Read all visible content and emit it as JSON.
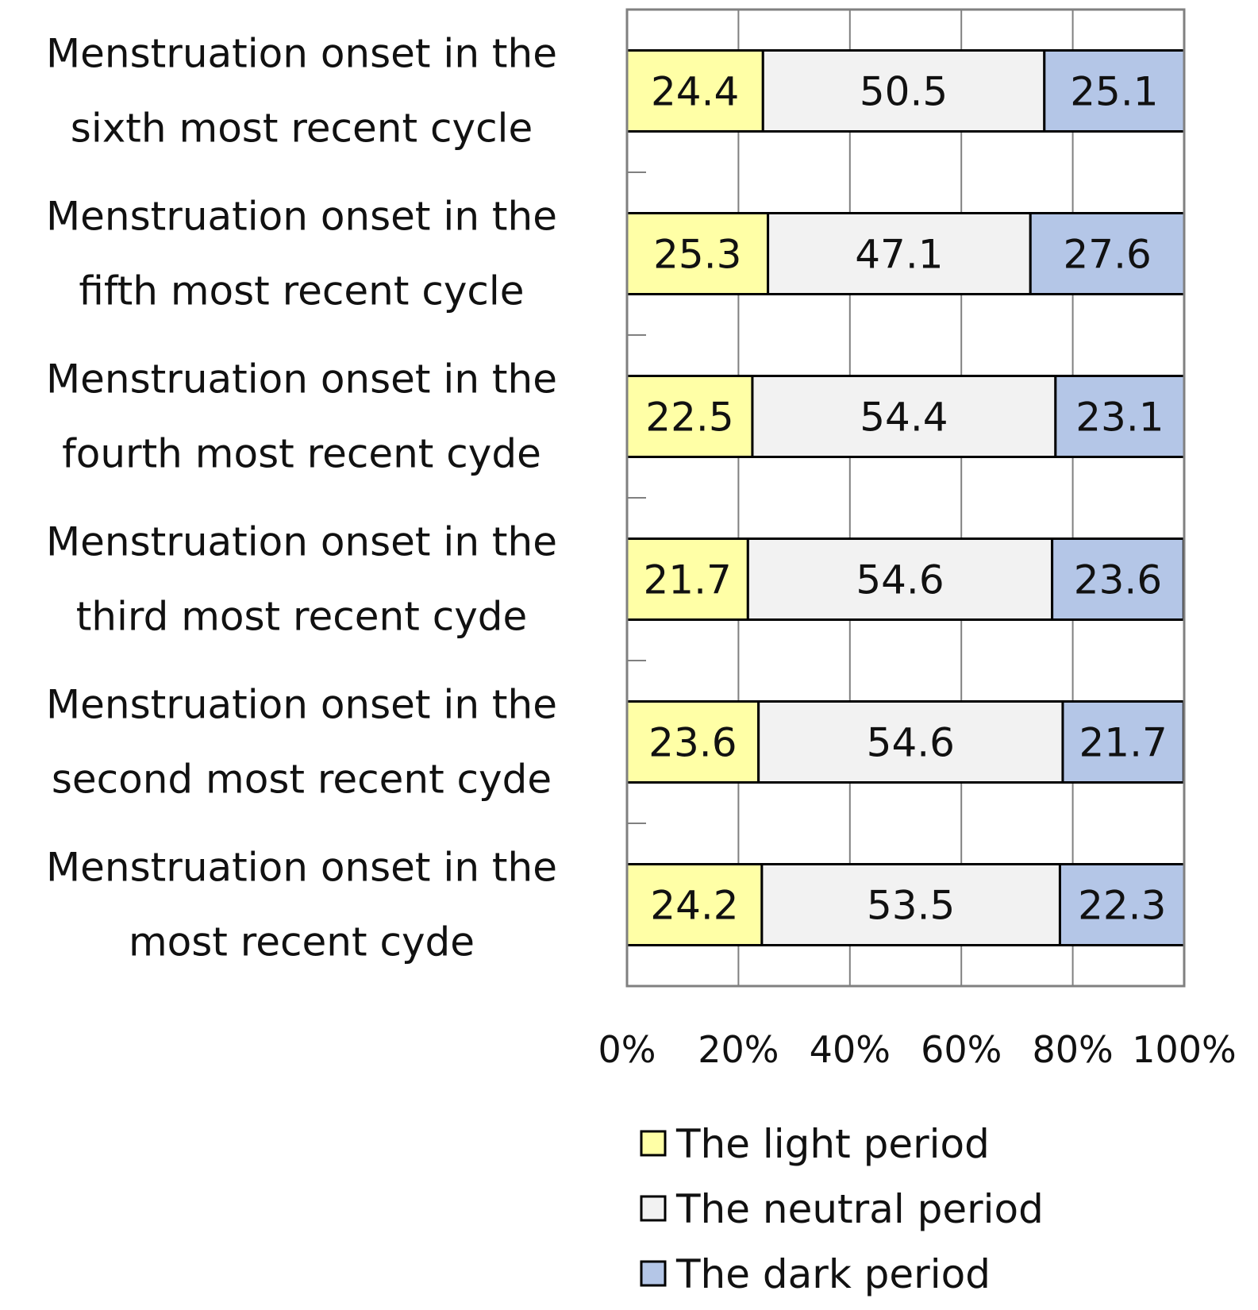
{
  "chart_data": {
    "type": "bar",
    "orientation": "horizontal",
    "stacked": true,
    "percent_stacked": true,
    "title": "",
    "xlabel": "",
    "ylabel": "",
    "xlim": [
      0,
      100
    ],
    "grid": true,
    "legend_position": "bottom",
    "x_ticks": [
      "0%",
      "20%",
      "40%",
      "60%",
      "80%",
      "100%"
    ],
    "categories": [
      [
        "Menstruation onset in the",
        "sixth most recent cycle"
      ],
      [
        "Menstruation onset in the",
        "fifth most recent cycle"
      ],
      [
        "Menstruation onset in the",
        "fourth most recent cyde"
      ],
      [
        "Menstruation onset in the",
        "third most recent cyde"
      ],
      [
        "Menstruation onset in the",
        "second most recent cyde"
      ],
      [
        "Menstruation onset in the",
        "most recent cyde"
      ]
    ],
    "series": [
      {
        "name": "The light period",
        "color": "#ffffa6",
        "values": [
          24.4,
          25.3,
          22.5,
          21.7,
          23.6,
          24.2
        ],
        "labels": [
          "24.4",
          "25.3",
          "22.5",
          "21.7",
          "23.6",
          "24.2"
        ]
      },
      {
        "name": "The neutral period",
        "color": "#f2f2f2",
        "values": [
          50.5,
          47.1,
          54.4,
          54.6,
          54.6,
          53.5
        ],
        "labels": [
          "50.5",
          "47.1",
          "54.4",
          "54.6",
          "54.6",
          "53.5"
        ]
      },
      {
        "name": "The dark period",
        "color": "#b4c6e7",
        "values": [
          25.1,
          27.6,
          23.1,
          23.6,
          21.7,
          22.3
        ],
        "labels": [
          "25.1",
          "27.6",
          "23.1",
          "23.6",
          "21.7",
          "22.3"
        ]
      }
    ]
  }
}
